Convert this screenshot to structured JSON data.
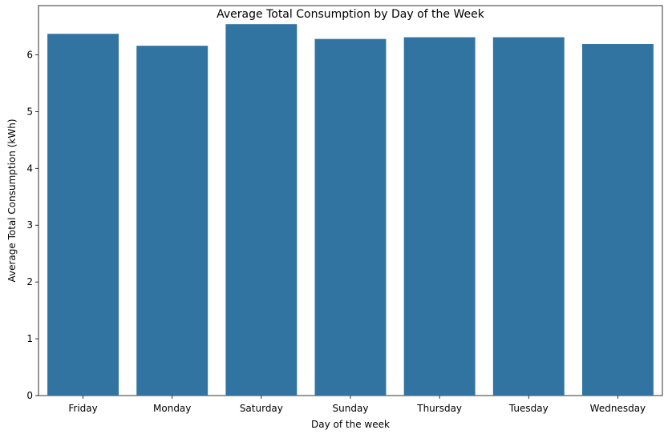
{
  "chart_data": {
    "type": "bar",
    "title": "Average Total Consumption by Day of the Week",
    "xlabel": "Day of the week",
    "ylabel": "Average Total Consumption (kWh)",
    "categories": [
      "Friday",
      "Monday",
      "Saturday",
      "Sunday",
      "Thursday",
      "Tuesday",
      "Wednesday"
    ],
    "values": [
      6.37,
      6.16,
      6.54,
      6.28,
      6.31,
      6.31,
      6.19
    ],
    "ylim": [
      0,
      6.867
    ],
    "yticks": [
      0,
      1,
      2,
      3,
      4,
      5,
      6
    ],
    "grid": false,
    "bar_color": "#3274a1"
  }
}
